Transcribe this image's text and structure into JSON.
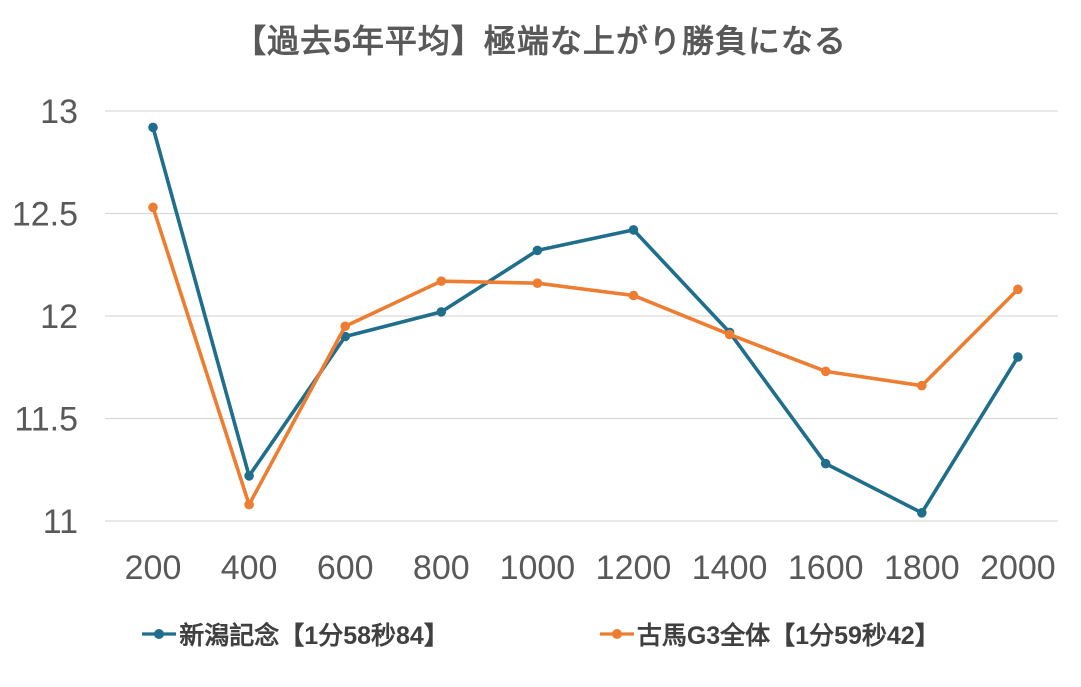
{
  "title": "【過去5年平均】極端な上がり勝負になる",
  "chart_data": {
    "type": "line",
    "x": [
      "200",
      "400",
      "600",
      "800",
      "1000",
      "1200",
      "1400",
      "1600",
      "1800",
      "2000"
    ],
    "yticks": [
      "13",
      "12.5",
      "12",
      "11.5",
      "11"
    ],
    "ylim": [
      11,
      13
    ],
    "grid": true,
    "legend_position": "bottom",
    "series": [
      {
        "name": "新潟記念【1分58秒84】",
        "color": "#1F6E8C",
        "values": [
          12.92,
          11.22,
          11.9,
          12.02,
          12.32,
          12.42,
          11.92,
          11.28,
          11.04,
          11.8
        ]
      },
      {
        "name": "古馬G3全体【1分59秒42】",
        "color": "#ED7D31",
        "values": [
          12.53,
          11.08,
          11.95,
          12.17,
          12.16,
          12.1,
          11.91,
          11.73,
          11.66,
          12.13
        ]
      }
    ]
  },
  "colors": {
    "gridline": "#D9D9D9",
    "tick_label": "#595959",
    "title": "#595959",
    "legend_text": "#404040",
    "background": "#FFFFFF"
  }
}
